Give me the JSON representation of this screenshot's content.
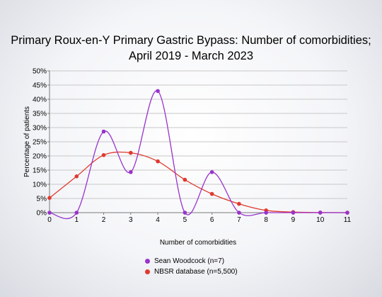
{
  "chart_data": {
    "type": "line",
    "title_line1": "Primary Roux-en-Y Primary Gastric Bypass: Number of comorbidities;",
    "title_line2": "April 2019 - March 2023",
    "xlabel": "Number of comorbidities",
    "ylabel": "Percentage of patients",
    "x": [
      0,
      1,
      2,
      3,
      4,
      5,
      6,
      7,
      8,
      9,
      10,
      11
    ],
    "xlim": [
      0,
      11
    ],
    "ylim": [
      0,
      50
    ],
    "yticks": [
      "0%",
      "5%",
      "10%",
      "15%",
      "20%",
      "25%",
      "30%",
      "35%",
      "40%",
      "45%",
      "50%"
    ],
    "grid": "horizontal",
    "legend_position": "bottom",
    "series": [
      {
        "name": "Sean Woodcock (n=7)",
        "color": "#9933cc",
        "values": [
          0,
          0,
          28.6,
          14.3,
          42.9,
          0,
          14.3,
          0,
          0,
          0,
          0,
          0
        ]
      },
      {
        "name": "NBSR database (n=5,500)",
        "color": "#e03a2e",
        "values": [
          5.2,
          12.8,
          20.3,
          21.1,
          18.1,
          11.6,
          6.6,
          3.1,
          0.8,
          0.2,
          0.05,
          0.0
        ]
      }
    ]
  }
}
